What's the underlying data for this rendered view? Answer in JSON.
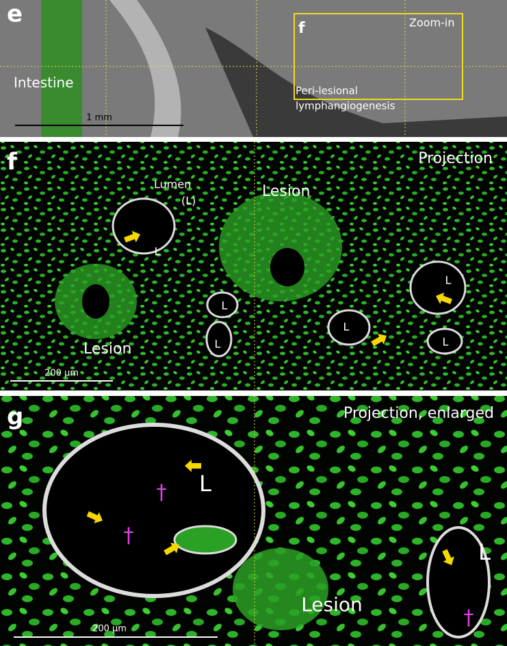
{
  "panel_e": {
    "label": "e",
    "inset_label": "f",
    "zoom": "Zoom-in",
    "tissue": "Intestine",
    "region_lines": [
      "Peri-lesional",
      "lymphangiogenesis"
    ],
    "scale_bar": "1 mm"
  },
  "panel_f": {
    "label": "f",
    "view": "Projection",
    "lumen_lines": [
      "Lumen",
      "(L)"
    ],
    "lesion_labels": [
      "Lesion",
      "Lesion"
    ],
    "lumen_marks": [
      "L",
      "L",
      "L",
      "L",
      "L",
      "L"
    ],
    "scale_bar": "200 µm"
  },
  "panel_g": {
    "label": "g",
    "view": "Projection, enlarged",
    "lumen_marks": [
      "L",
      "L"
    ],
    "lesion": "Lesion",
    "daggers": [
      "†",
      "†",
      "†"
    ],
    "scale_bar": "200 µm"
  }
}
